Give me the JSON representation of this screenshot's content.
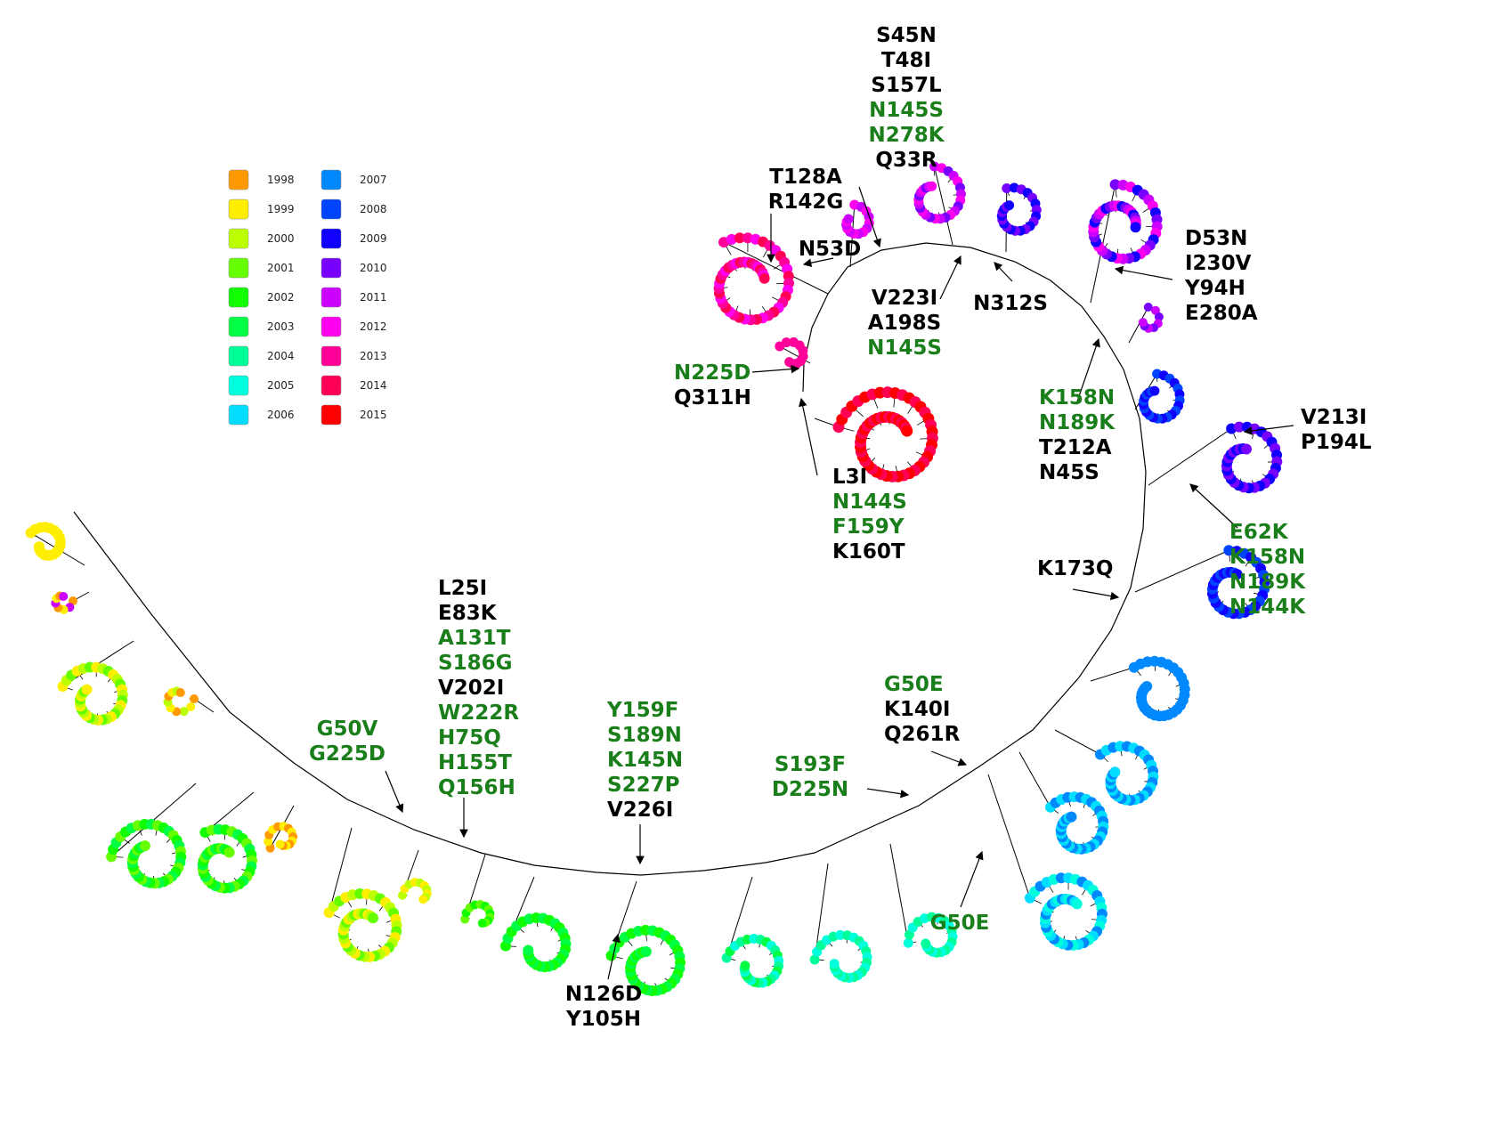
{
  "legend": {
    "entries": [
      {
        "year": "1998",
        "color": "#ff9900"
      },
      {
        "year": "1999",
        "color": "#ffee00"
      },
      {
        "year": "2000",
        "color": "#bbff00"
      },
      {
        "year": "2001",
        "color": "#66ff00"
      },
      {
        "year": "2002",
        "color": "#11ff00"
      },
      {
        "year": "2003",
        "color": "#00ff44"
      },
      {
        "year": "2004",
        "color": "#00ff99"
      },
      {
        "year": "2005",
        "color": "#00ffdd"
      },
      {
        "year": "2006",
        "color": "#00ddff"
      },
      {
        "year": "2007",
        "color": "#0088ff"
      },
      {
        "year": "2008",
        "color": "#0044ff"
      },
      {
        "year": "2009",
        "color": "#1100ff"
      },
      {
        "year": "2010",
        "color": "#7700ff"
      },
      {
        "year": "2011",
        "color": "#cc00ff"
      },
      {
        "year": "2012",
        "color": "#ff00ee"
      },
      {
        "year": "2013",
        "color": "#ff0099"
      },
      {
        "year": "2014",
        "color": "#ff0055"
      },
      {
        "year": "2015",
        "color": "#ff0000"
      }
    ]
  },
  "colors": {
    "black_label": "#000000",
    "green_label": "#1a7f1a",
    "branch": "#000000"
  },
  "annotations": [
    {
      "lines": [
        {
          "t": "S45N",
          "c": "black"
        },
        {
          "t": "T48I",
          "c": "black"
        },
        {
          "t": "S157L",
          "c": "black"
        },
        {
          "t": "N145S",
          "c": "green"
        },
        {
          "t": "N278K",
          "c": "green"
        },
        {
          "t": "Q33R",
          "c": "black"
        }
      ]
    },
    {
      "lines": [
        {
          "t": "T128A",
          "c": "black"
        },
        {
          "t": "R142G",
          "c": "black"
        }
      ]
    },
    {
      "lines": [
        {
          "t": "N53D",
          "c": "black"
        }
      ]
    },
    {
      "lines": [
        {
          "t": "V223I",
          "c": "black"
        },
        {
          "t": "A198S",
          "c": "black"
        },
        {
          "t": "N145S",
          "c": "green"
        }
      ]
    },
    {
      "lines": [
        {
          "t": "N312S",
          "c": "black"
        }
      ]
    },
    {
      "lines": [
        {
          "t": "D53N",
          "c": "black"
        },
        {
          "t": "I230V",
          "c": "black"
        },
        {
          "t": "Y94H",
          "c": "black"
        },
        {
          "t": "E280A",
          "c": "black"
        }
      ]
    },
    {
      "lines": [
        {
          "t": "N225D",
          "c": "green"
        },
        {
          "t": "Q311H",
          "c": "black"
        }
      ]
    },
    {
      "lines": [
        {
          "t": "K158N",
          "c": "green"
        },
        {
          "t": "N189K",
          "c": "green"
        },
        {
          "t": "T212A",
          "c": "black"
        },
        {
          "t": "N45S",
          "c": "black"
        }
      ]
    },
    {
      "lines": [
        {
          "t": "V213I",
          "c": "black"
        },
        {
          "t": "P194L",
          "c": "black"
        }
      ]
    },
    {
      "lines": [
        {
          "t": "L3I",
          "c": "black"
        },
        {
          "t": "N144S",
          "c": "green"
        },
        {
          "t": "F159Y",
          "c": "green"
        },
        {
          "t": "K160T",
          "c": "black"
        }
      ]
    },
    {
      "lines": [
        {
          "t": "E62K",
          "c": "green"
        },
        {
          "t": "K158N",
          "c": "green"
        },
        {
          "t": "N189K",
          "c": "green"
        },
        {
          "t": "N144K",
          "c": "green"
        }
      ]
    },
    {
      "lines": [
        {
          "t": "K173Q",
          "c": "black"
        }
      ]
    },
    {
      "lines": [
        {
          "t": "L25I",
          "c": "black"
        },
        {
          "t": "E83K",
          "c": "black"
        },
        {
          "t": "A131T",
          "c": "green"
        },
        {
          "t": "S186G",
          "c": "green"
        },
        {
          "t": "V202I",
          "c": "black"
        },
        {
          "t": "W222R",
          "c": "green"
        },
        {
          "t": "H75Q",
          "c": "green"
        },
        {
          "t": "H155T",
          "c": "green"
        },
        {
          "t": "Q156H",
          "c": "green"
        }
      ]
    },
    {
      "lines": [
        {
          "t": "G50V",
          "c": "green"
        },
        {
          "t": "G225D",
          "c": "green"
        }
      ]
    },
    {
      "lines": [
        {
          "t": "Y159F",
          "c": "green"
        },
        {
          "t": "S189N",
          "c": "green"
        },
        {
          "t": "K145N",
          "c": "green"
        },
        {
          "t": "S227P",
          "c": "green"
        },
        {
          "t": "V226I",
          "c": "black"
        }
      ]
    },
    {
      "lines": [
        {
          "t": "G50E",
          "c": "green"
        },
        {
          "t": "K140I",
          "c": "black"
        },
        {
          "t": "Q261R",
          "c": "black"
        }
      ]
    },
    {
      "lines": [
        {
          "t": "S193F",
          "c": "green"
        },
        {
          "t": "D225N",
          "c": "green"
        }
      ]
    },
    {
      "lines": [
        {
          "t": "G50E",
          "c": "green"
        }
      ]
    },
    {
      "lines": [
        {
          "t": "N126D",
          "c": "black"
        },
        {
          "t": "Y105H",
          "c": "black"
        }
      ]
    }
  ]
}
